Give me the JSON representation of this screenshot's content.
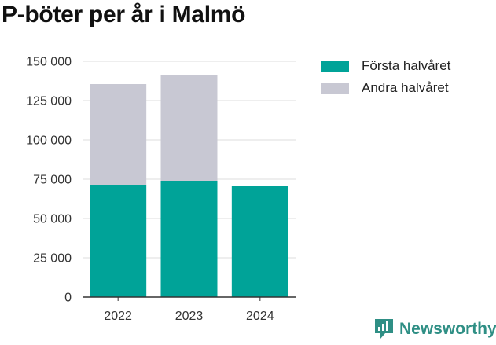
{
  "title": "P-böter per år i Malmö",
  "brand": {
    "name": "Newsworthy",
    "color": "#2f8f85",
    "icon": "newsworthy-logo-icon"
  },
  "chart_data": {
    "type": "bar",
    "stacked": true,
    "title": "P-böter per år i Malmö",
    "xlabel": "",
    "ylabel": "",
    "categories": [
      "2022",
      "2023",
      "2024"
    ],
    "series": [
      {
        "name": "Första halvåret",
        "color": "#00a398",
        "values": [
          71000,
          74000,
          70500
        ]
      },
      {
        "name": "Andra halvåret",
        "color": "#c8c8d3",
        "values": [
          64500,
          67500,
          0
        ]
      }
    ],
    "ylim": [
      0,
      150000
    ],
    "yticks": [
      0,
      25000,
      50000,
      75000,
      100000,
      125000,
      150000
    ],
    "ytick_labels": [
      "0",
      "25 000",
      "50 000",
      "75 000",
      "100 000",
      "125 000",
      "150 000"
    ],
    "grid": true,
    "legend_position": "right"
  }
}
